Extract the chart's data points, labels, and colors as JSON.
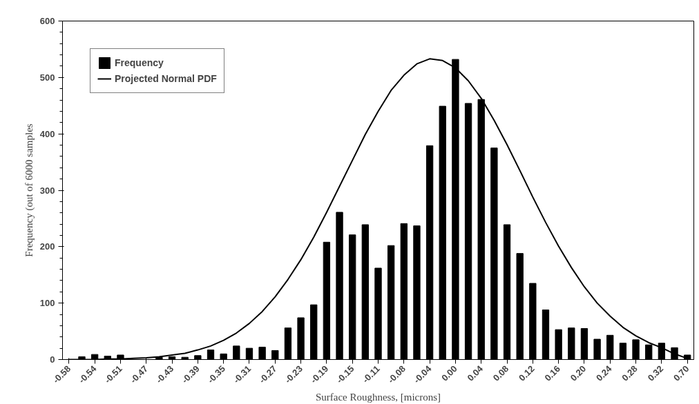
{
  "chart_data": {
    "type": "bar",
    "xlabel": "Surface Roughness, [microns]",
    "ylabel": "Frequency (out of 6000 samples",
    "categories": [
      "-0.58",
      null,
      "-0.54",
      null,
      "-0.51",
      null,
      "-0.47",
      null,
      "-0.43",
      null,
      "-0.39",
      null,
      "-0.35",
      null,
      "-0.31",
      null,
      "-0.27",
      null,
      "-0.23",
      null,
      "-0.19",
      null,
      "-0.15",
      null,
      "-0.11",
      null,
      "-0.08",
      null,
      "-0.04",
      null,
      "0.00",
      null,
      "0.04",
      null,
      "0.08",
      null,
      "0.12",
      null,
      "0.16",
      null,
      "0.20",
      null,
      "0.24",
      null,
      "0.28",
      null,
      "0.32",
      null,
      "0.70"
    ],
    "series": [
      {
        "name": "Frequency",
        "color": "#000000",
        "values": [
          0,
          5,
          9,
          6,
          8,
          null,
          null,
          4,
          5,
          4,
          7,
          17,
          10,
          24,
          20,
          22,
          16,
          56,
          74,
          97,
          208,
          261,
          221,
          239,
          162,
          202,
          241,
          237,
          379,
          449,
          532,
          454,
          461,
          375,
          239,
          188,
          135,
          88,
          53,
          56,
          55,
          36,
          43,
          29,
          35,
          26,
          29,
          21,
          8
        ]
      },
      {
        "name": "Projected Normal PDF",
        "type": "line",
        "color": "#000000",
        "values": [
          0,
          0,
          0,
          1,
          1,
          2,
          3,
          5,
          8,
          11,
          17,
          24,
          34,
          47,
          64,
          85,
          111,
          142,
          177,
          217,
          261,
          307,
          353,
          399,
          440,
          477,
          504,
          524,
          533,
          530,
          517,
          494,
          463,
          424,
          381,
          335,
          288,
          243,
          201,
          163,
          129,
          100,
          77,
          57,
          42,
          30,
          21,
          10,
          2
        ]
      }
    ],
    "ylim": [
      0,
      600
    ],
    "yticks": [
      0,
      100,
      200,
      300,
      400,
      500,
      600
    ],
    "grid": false,
    "legend": "top left",
    "line_style": "solid"
  }
}
